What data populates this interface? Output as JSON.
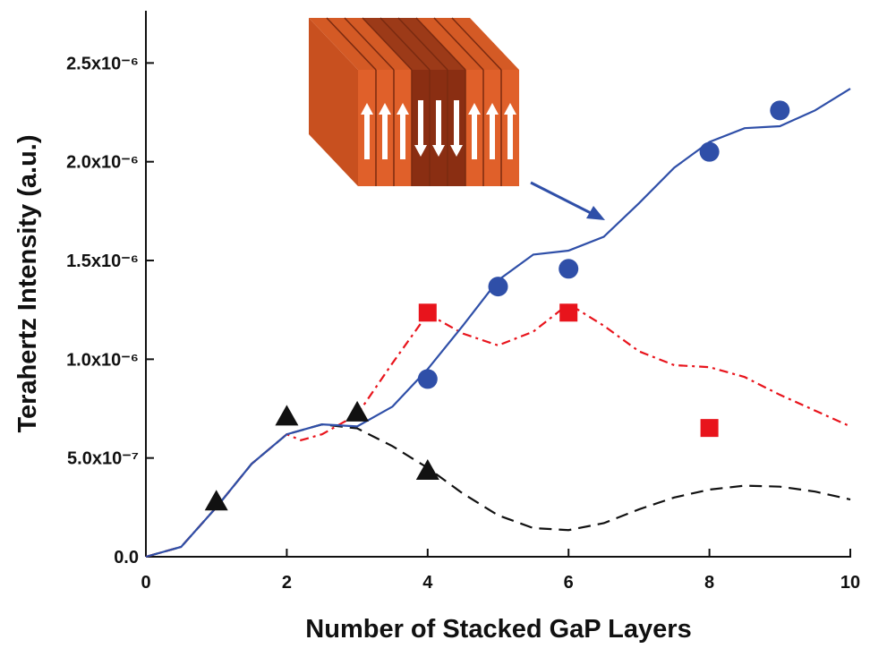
{
  "chart_data": {
    "type": "line",
    "x_label": "Number of Stacked GaP Layers",
    "y_label": "Terahertz Intensity (a.u.)",
    "xlim": [
      0,
      10
    ],
    "xticks": [
      0,
      2,
      4,
      6,
      8,
      10
    ],
    "ylim": [
      0,
      2.76e-06
    ],
    "yticks": [
      {
        "value": 0,
        "label": "0.0"
      },
      {
        "value": 5e-07,
        "label": "5.0x10⁻⁷"
      },
      {
        "value": 1e-06,
        "label": "1.0x10⁻⁶"
      },
      {
        "value": 1.5e-06,
        "label": "1.5x10⁻⁶"
      },
      {
        "value": 2e-06,
        "label": "2.0x10⁻⁶"
      },
      {
        "value": 2.5e-06,
        "label": "2.5x10⁻⁶"
      }
    ],
    "series": [
      {
        "kind": "curve",
        "dash": "dashed",
        "color": "#111111",
        "x": [
          0,
          0.5,
          1,
          1.5,
          2,
          2.5,
          3,
          3.5,
          4,
          4.5,
          5,
          5.5,
          6,
          6.5,
          7,
          7.5,
          8,
          8.5,
          9,
          9.5,
          10
        ],
        "values": [
          0,
          5e-08,
          2.5e-07,
          4.7e-07,
          6.2e-07,
          6.7e-07,
          6.5e-07,
          5.6e-07,
          4.5e-07,
          3.2e-07,
          2.1e-07,
          1.45e-07,
          1.35e-07,
          1.7e-07,
          2.4e-07,
          3e-07,
          3.4e-07,
          3.6e-07,
          3.55e-07,
          3.3e-07,
          2.9e-07
        ]
      },
      {
        "kind": "curve",
        "dash": "dashdot",
        "color": "#e8141c",
        "x": [
          0,
          0.5,
          1,
          1.5,
          2,
          2.2,
          2.5,
          3,
          3.5,
          4,
          4.5,
          5,
          5.5,
          6,
          6.5,
          7,
          7.5,
          8,
          8.5,
          9,
          9.5,
          10
        ],
        "values": [
          0,
          5e-08,
          2.5e-07,
          4.7e-07,
          6.2e-07,
          5.9e-07,
          6.2e-07,
          7.2e-07,
          9.8e-07,
          1.23e-06,
          1.13e-06,
          1.07e-06,
          1.14e-06,
          1.28e-06,
          1.17e-06,
          1.04e-06,
          9.7e-07,
          9.6e-07,
          9.1e-07,
          8.2e-07,
          7.4e-07,
          6.6e-07
        ]
      },
      {
        "kind": "curve",
        "dash": "solid",
        "color": "#2f4fa8",
        "x": [
          0,
          0.5,
          1,
          1.5,
          2,
          2.5,
          3,
          3.5,
          4,
          4.5,
          5,
          5.5,
          6,
          6.5,
          7,
          7.5,
          8,
          8.5,
          9,
          9.5,
          10
        ],
        "values": [
          0,
          5e-08,
          2.5e-07,
          4.7e-07,
          6.2e-07,
          6.7e-07,
          6.6e-07,
          7.6e-07,
          9.5e-07,
          1.17e-06,
          1.4e-06,
          1.53e-06,
          1.55e-06,
          1.62e-06,
          1.79e-06,
          1.97e-06,
          2.1e-06,
          2.17e-06,
          2.18e-06,
          2.26e-06,
          2.37e-06
        ]
      },
      {
        "kind": "points",
        "marker": "triangle",
        "color": "#111111",
        "x": [
          1,
          2,
          3,
          4
        ],
        "values": [
          2.8e-07,
          7.1e-07,
          7.3e-07,
          4.35e-07
        ]
      },
      {
        "kind": "points",
        "marker": "square",
        "color": "#e8141c",
        "x": [
          4,
          6,
          8
        ],
        "values": [
          1.236e-06,
          1.236e-06,
          6.52e-07
        ]
      },
      {
        "kind": "points",
        "marker": "circle",
        "color": "#2f4fa8",
        "x": [
          4,
          5,
          6,
          8,
          9
        ],
        "values": [
          9e-07,
          1.368e-06,
          1.458e-06,
          2.05e-06,
          2.26e-06
        ]
      }
    ]
  }
}
